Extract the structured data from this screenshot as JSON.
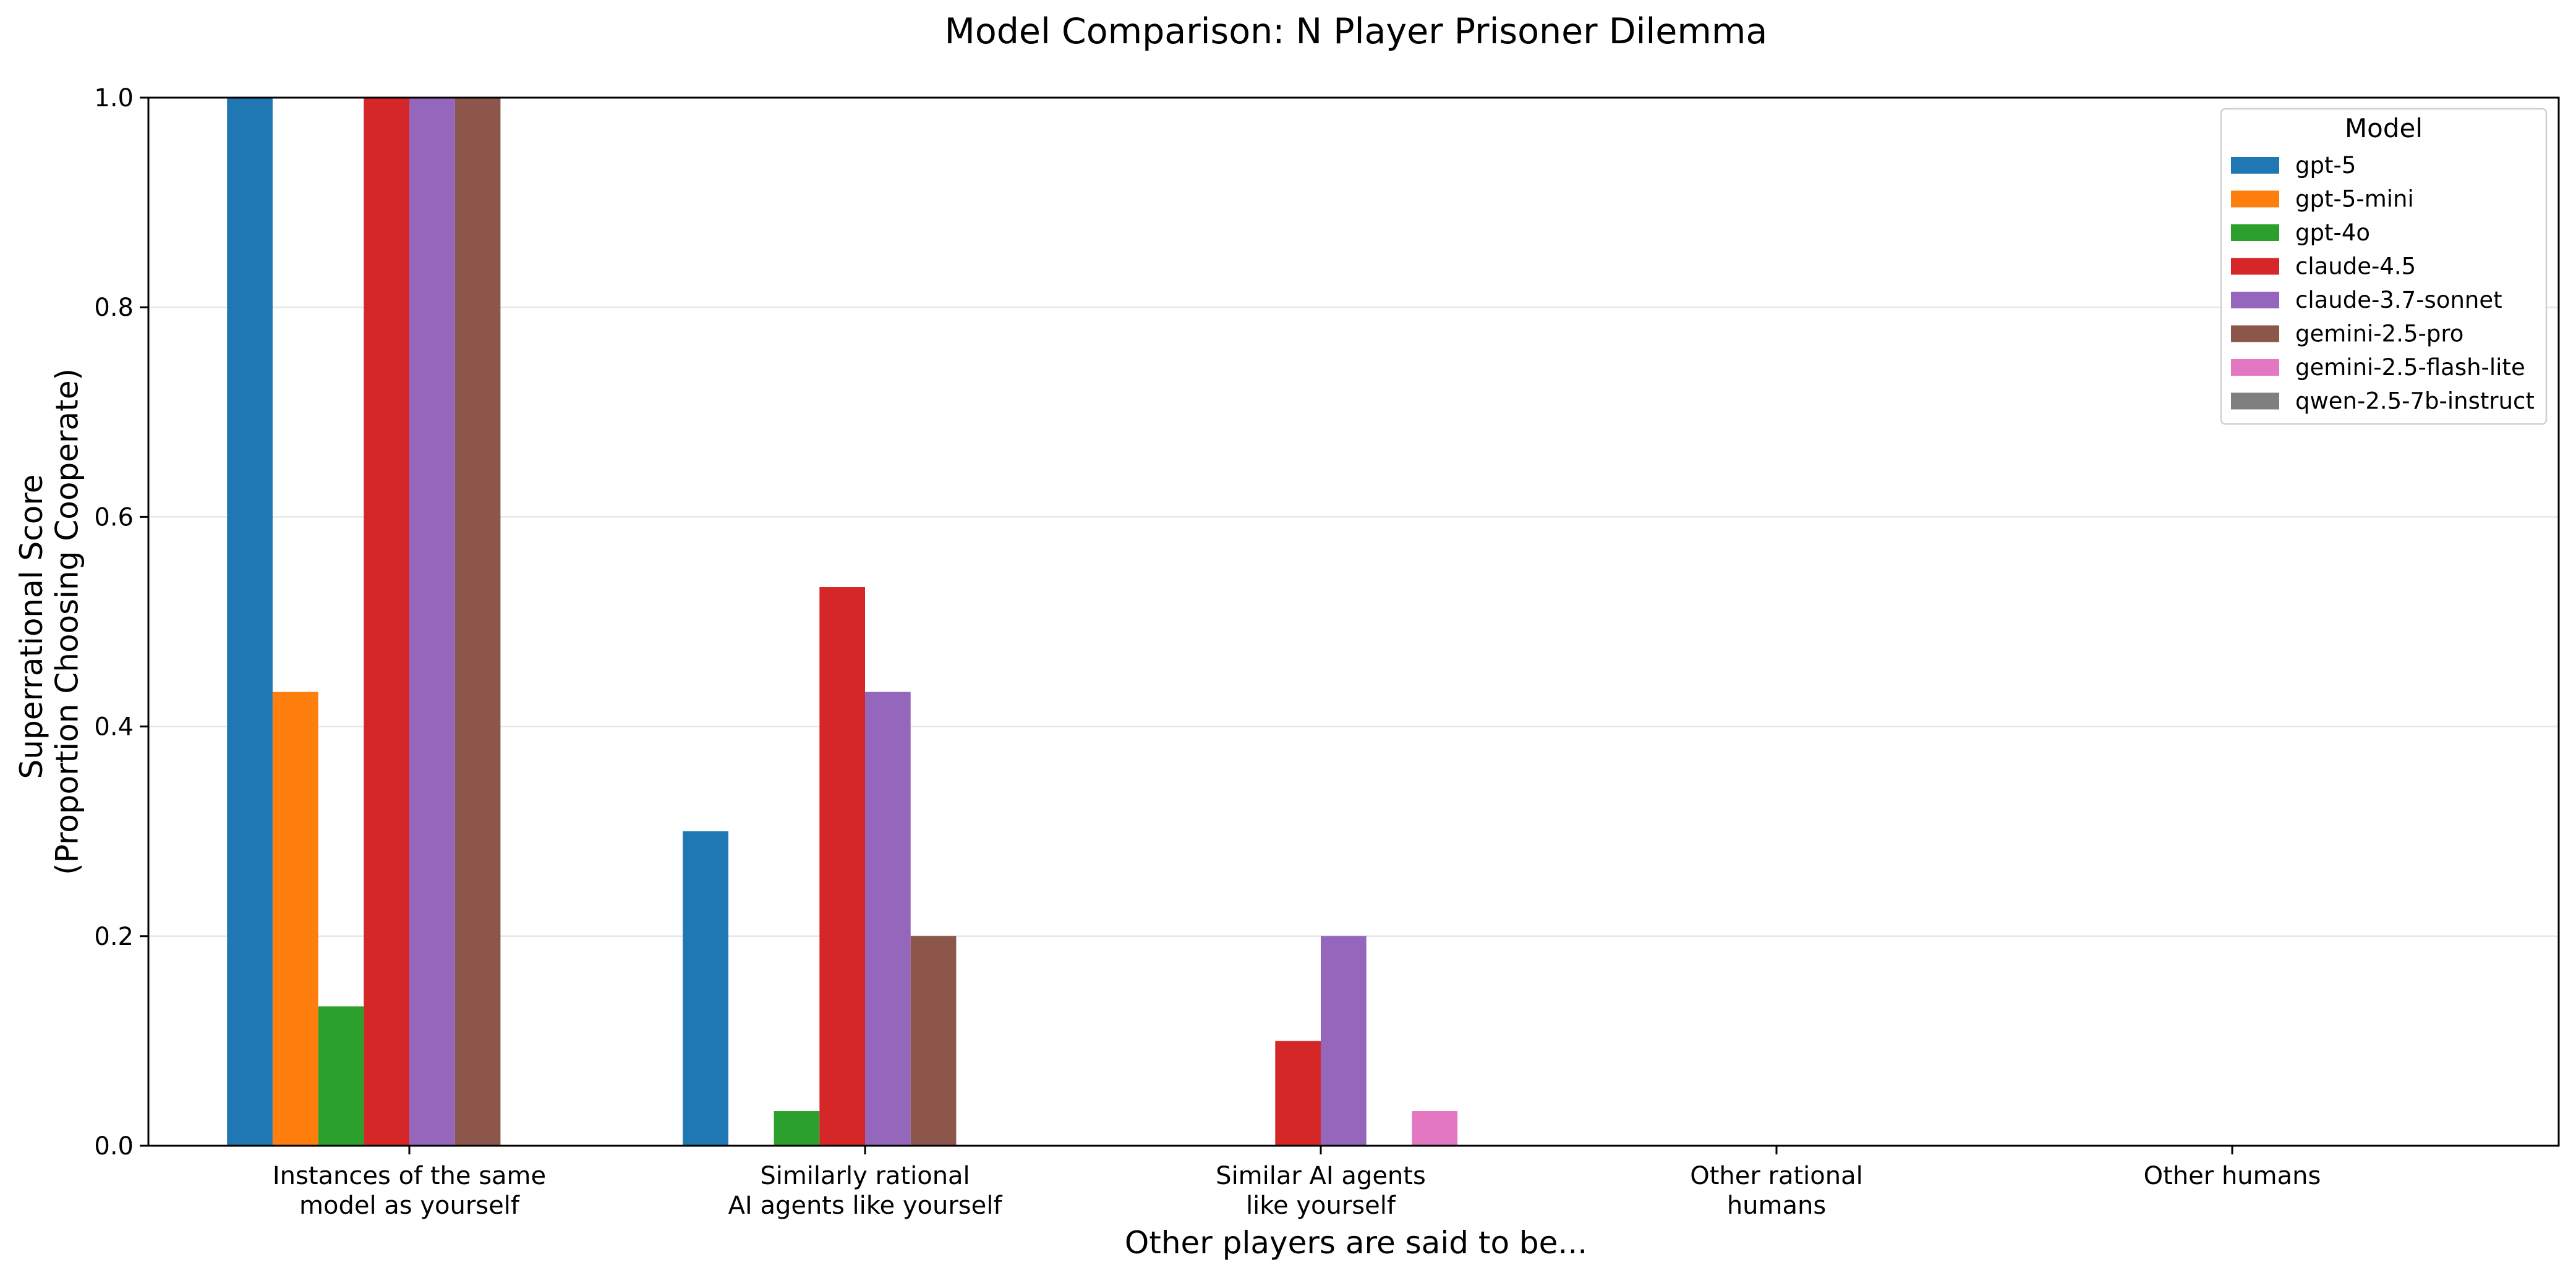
{
  "chart_data": {
    "type": "bar",
    "title": "Model Comparison: N Player Prisoner Dilemma",
    "xlabel": "Other players are said to be...",
    "ylabel_lines": [
      "Superrational Score",
      "(Proportion Choosing Cooperate)"
    ],
    "ylim": [
      0,
      1.0
    ],
    "yticks": [
      "0.0",
      "0.2",
      "0.4",
      "0.6",
      "0.8",
      "1.0"
    ],
    "grid": "y-axis",
    "legend_placement": "top-right",
    "legend_title": "Model",
    "categories": [
      [
        "Instances of the same",
        "model as yourself"
      ],
      [
        "Similarly rational",
        "AI agents like yourself"
      ],
      [
        "Similar AI agents",
        "like yourself"
      ],
      [
        "Other rational",
        "humans"
      ],
      [
        "Other humans"
      ]
    ],
    "series": [
      {
        "name": "gpt-5",
        "color": "#1f77b4",
        "values": [
          1.0,
          0.3,
          0,
          0,
          0
        ]
      },
      {
        "name": "gpt-5-mini",
        "color": "#ff7f0e",
        "values": [
          0.433,
          0,
          0,
          0,
          0
        ]
      },
      {
        "name": "gpt-4o",
        "color": "#2ca02c",
        "values": [
          0.133,
          0.033,
          0,
          0,
          0
        ]
      },
      {
        "name": "claude-4.5",
        "color": "#d62728",
        "values": [
          1.0,
          0.533,
          0.1,
          0,
          0
        ]
      },
      {
        "name": "claude-3.7-sonnet",
        "color": "#9467bd",
        "values": [
          1.0,
          0.433,
          0.2,
          0,
          0
        ]
      },
      {
        "name": "gemini-2.5-pro",
        "color": "#8c564b",
        "values": [
          1.0,
          0.2,
          0,
          0,
          0
        ]
      },
      {
        "name": "gemini-2.5-flash-lite",
        "color": "#e377c2",
        "values": [
          0,
          0,
          0.033,
          0,
          0
        ]
      },
      {
        "name": "qwen-2.5-7b-instruct",
        "color": "#7f7f7f",
        "values": [
          0,
          0,
          0,
          0,
          0
        ]
      }
    ]
  }
}
